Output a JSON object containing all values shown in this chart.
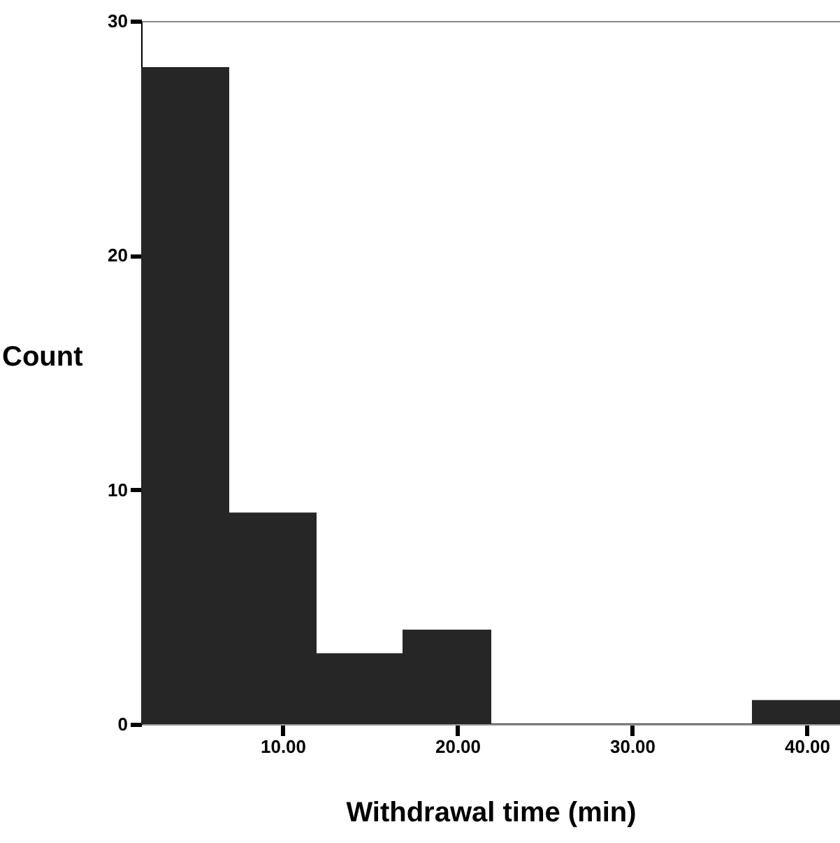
{
  "chart_data": {
    "type": "histogram",
    "xlabel": "Withdrawal time (min)",
    "ylabel": "Count",
    "bins": [
      1.9,
      6.9,
      11.9,
      16.9,
      21.9,
      26.9,
      31.9,
      36.9,
      41.9
    ],
    "values": [
      28,
      9,
      3,
      4,
      0,
      0,
      0,
      1
    ],
    "color": "#262626",
    "xlim": [
      1.9,
      41.9
    ],
    "ylim": [
      0,
      30
    ],
    "xticks": [
      {
        "value": 10,
        "label": "10.00"
      },
      {
        "value": 20,
        "label": "20.00"
      },
      {
        "value": 30,
        "label": "30.00"
      },
      {
        "value": 40,
        "label": "40.00"
      }
    ],
    "yticks": [
      0,
      10,
      20,
      30
    ],
    "grid": false
  }
}
